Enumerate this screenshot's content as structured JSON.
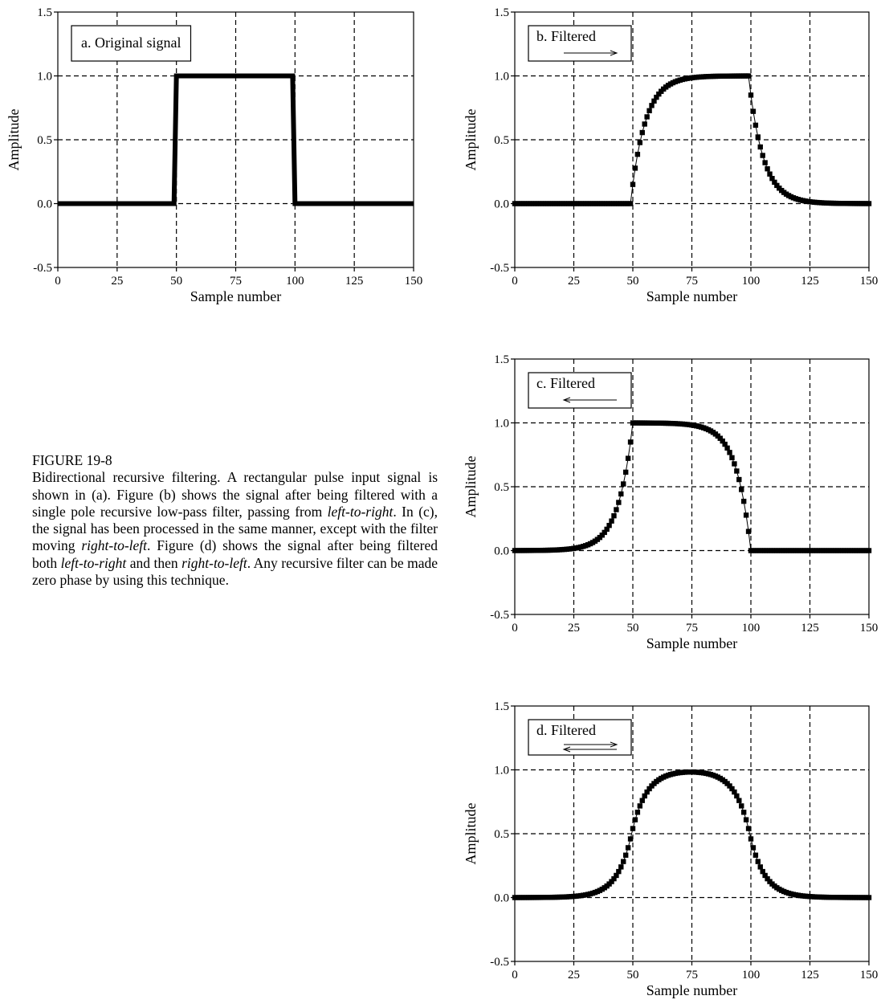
{
  "figure": {
    "label": "FIGURE 19-8",
    "caption": [
      {
        "t": "Bidirectional recursive filtering.  A rectangular pulse input signal is shown in (a). Figure (b) shows the signal after being filtered with a single pole recursive low-pass filter, passing from ",
        "i": false
      },
      {
        "t": "left-to-right",
        "i": true
      },
      {
        "t": ".  In (c), the signal has been processed in the same manner, except with the filter moving ",
        "i": false
      },
      {
        "t": "right-to-left",
        "i": true
      },
      {
        "t": ".  Figure (d) shows the signal after being filtered both ",
        "i": false
      },
      {
        "t": "left-to-right",
        "i": true
      },
      {
        "t": " and then ",
        "i": false
      },
      {
        "t": "right-to-left",
        "i": true
      },
      {
        "t": ".   Any recursive filter can be made zero phase by using this technique.",
        "i": false
      }
    ]
  },
  "chart_data": [
    {
      "id": "a",
      "type": "scatter",
      "marker": "line",
      "title": "a.  Original signal",
      "arrow": "none",
      "xlabel": "Sample number",
      "ylabel": "Amplitude",
      "xlim": [
        0,
        150
      ],
      "ylim": [
        -0.5,
        1.5
      ],
      "xticks": [
        0,
        25,
        50,
        75,
        100,
        125,
        150
      ],
      "xtick_labels": [
        "0",
        "25",
        "50",
        "75",
        "100",
        "125",
        "150"
      ],
      "yticks": [
        -0.5,
        0,
        0.5,
        1,
        1.5
      ],
      "ytick_labels": [
        "-0.5",
        "0.0",
        "0.5",
        "1.0",
        "1.5"
      ],
      "grid": true,
      "series": [
        {
          "kind": "pulse",
          "lo": 0,
          "hi": 1,
          "start": 50,
          "end": 100,
          "samples": [
            0,
            150
          ]
        }
      ]
    },
    {
      "id": "b",
      "type": "scatter",
      "marker": "square",
      "title": "b.  Filtered",
      "arrow": "right",
      "xlabel": "Sample number",
      "ylabel": "Amplitude",
      "xlim": [
        0,
        150
      ],
      "ylim": [
        -0.5,
        1.5
      ],
      "xticks": [
        0,
        25,
        50,
        75,
        100,
        125,
        150
      ],
      "xtick_labels": [
        "0",
        "25",
        "50",
        "75",
        "100",
        "125",
        "150"
      ],
      "yticks": [
        -0.5,
        0,
        0.5,
        1,
        1.5
      ],
      "ytick_labels": [
        "-0.5",
        "0.0",
        "0.5",
        "1.0",
        "1.5"
      ],
      "grid": true,
      "series": [
        {
          "kind": "recursive_lowpass",
          "direction": "left-to-right",
          "decay": 0.85,
          "samples": [
            0,
            150
          ]
        }
      ]
    },
    {
      "id": "c",
      "type": "scatter",
      "marker": "square",
      "title": "c.  Filtered",
      "arrow": "left",
      "xlabel": "Sample number",
      "ylabel": "Amplitude",
      "xlim": [
        0,
        150
      ],
      "ylim": [
        -0.5,
        1.5
      ],
      "xticks": [
        0,
        25,
        50,
        75,
        100,
        125,
        150
      ],
      "xtick_labels": [
        "0",
        "25",
        "50",
        "75",
        "100",
        "125",
        "150"
      ],
      "yticks": [
        -0.5,
        0,
        0.5,
        1,
        1.5
      ],
      "ytick_labels": [
        "-0.5",
        "0.0",
        "0.5",
        "1.0",
        "1.5"
      ],
      "grid": true,
      "series": [
        {
          "kind": "recursive_lowpass",
          "direction": "right-to-left",
          "decay": 0.85,
          "samples": [
            0,
            150
          ]
        }
      ]
    },
    {
      "id": "d",
      "type": "scatter",
      "marker": "square",
      "title": "d.  Filtered",
      "arrow": "both",
      "xlabel": "Sample number",
      "ylabel": "Amplitude",
      "xlim": [
        0,
        150
      ],
      "ylim": [
        -0.5,
        1.5
      ],
      "xticks": [
        0,
        25,
        50,
        75,
        100,
        125,
        150
      ],
      "xtick_labels": [
        "0",
        "25",
        "50",
        "75",
        "100",
        "125",
        "150"
      ],
      "yticks": [
        -0.5,
        0,
        0.5,
        1,
        1.5
      ],
      "ytick_labels": [
        "-0.5",
        "0.0",
        "0.5",
        "1.0",
        "1.5"
      ],
      "grid": true,
      "series": [
        {
          "kind": "recursive_lowpass",
          "direction": "bidirectional",
          "decay": 0.85,
          "samples": [
            0,
            150
          ]
        }
      ]
    }
  ]
}
